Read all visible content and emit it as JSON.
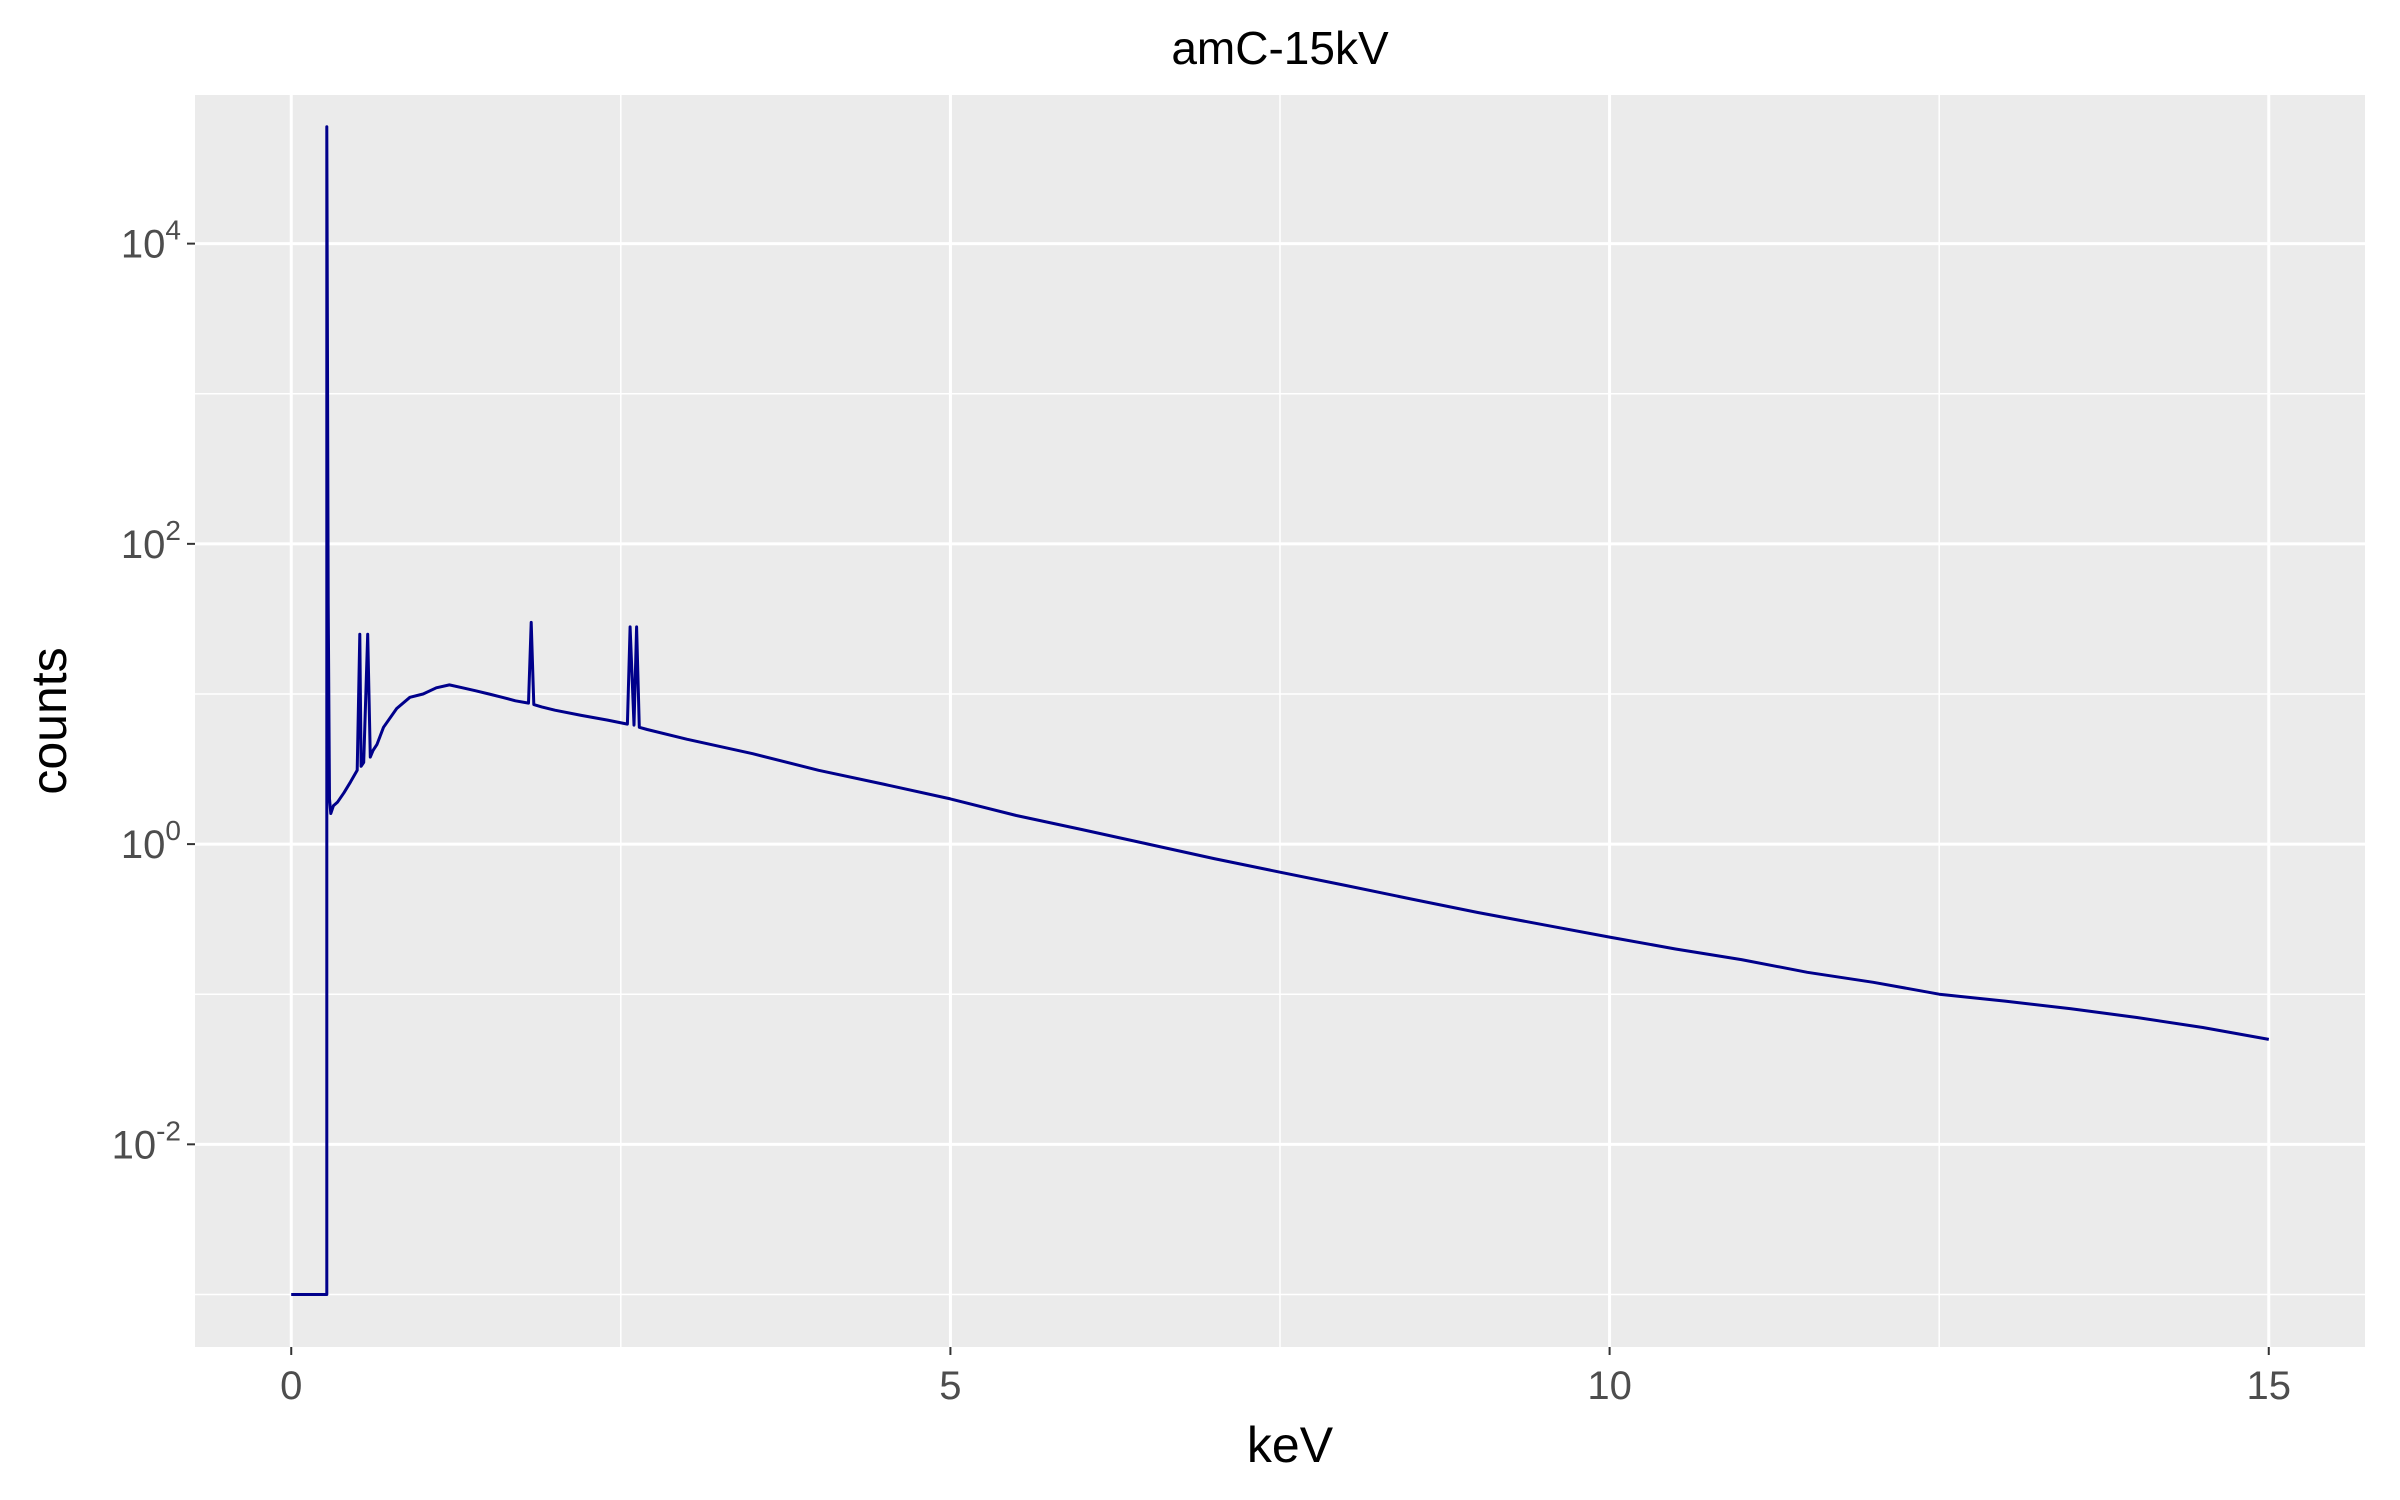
{
  "chart_data": {
    "type": "line",
    "title": "amC-15kV",
    "xlabel": "keV",
    "ylabel": "counts",
    "xlim": [
      -0.73,
      15.73
    ],
    "ylim_log10": [
      -3.35,
      4.99
    ],
    "y_scale": "log10",
    "x_ticks": [
      0,
      5,
      10,
      15
    ],
    "x_tick_labels": [
      "0",
      "5",
      "10",
      "15"
    ],
    "y_ticks": [
      {
        "base": "10",
        "exp": "4",
        "value": 10000
      },
      {
        "base": "10",
        "exp": "2",
        "value": 100
      },
      {
        "base": "10",
        "exp": "0",
        "value": 1
      },
      {
        "base": "10",
        "exp": "-2",
        "value": 0.01
      }
    ],
    "grid": true,
    "legend": "none",
    "line_color": "#00008B",
    "panel_color": "#EBEBEB",
    "series": [
      {
        "x": [
          0.0,
          0.27,
          0.27,
          0.28,
          0.29,
          0.3,
          0.32,
          0.35,
          0.4,
          0.45,
          0.5,
          0.52,
          0.53,
          0.55,
          0.58,
          0.6,
          0.62,
          0.65,
          0.7,
          0.8,
          0.9,
          1.0,
          1.1,
          1.2,
          1.3,
          1.4,
          1.5,
          1.6,
          1.7,
          1.8,
          1.82,
          1.84,
          1.9,
          2.0,
          2.2,
          2.4,
          2.55,
          2.57,
          2.6,
          2.62,
          2.64,
          2.7,
          3.0,
          3.5,
          4.0,
          4.5,
          5.0,
          5.5,
          6.0,
          6.5,
          7.0,
          7.5,
          8.0,
          8.5,
          9.0,
          9.5,
          10.0,
          10.5,
          11.0,
          11.5,
          12.0,
          12.5,
          13.0,
          13.5,
          14.0,
          14.5,
          15.0
        ],
        "y": [
          0.001,
          0.001,
          60000,
          40,
          2,
          1.6,
          1.8,
          1.9,
          2.2,
          2.6,
          3.1,
          25,
          3.3,
          3.5,
          25,
          3.8,
          4.2,
          4.6,
          6.0,
          8.0,
          9.5,
          10.0,
          11.0,
          11.5,
          11.0,
          10.5,
          10.0,
          9.5,
          9.0,
          8.7,
          30,
          8.5,
          8.2,
          7.8,
          7.2,
          6.7,
          6.3,
          28,
          6.2,
          28,
          6.0,
          5.8,
          5.0,
          4.0,
          3.1,
          2.5,
          2.0,
          1.55,
          1.25,
          1.0,
          0.8,
          0.65,
          0.53,
          0.43,
          0.35,
          0.29,
          0.24,
          0.2,
          0.17,
          0.14,
          0.12,
          0.1,
          0.09,
          0.08,
          0.07,
          0.06,
          0.05
        ]
      }
    ]
  }
}
